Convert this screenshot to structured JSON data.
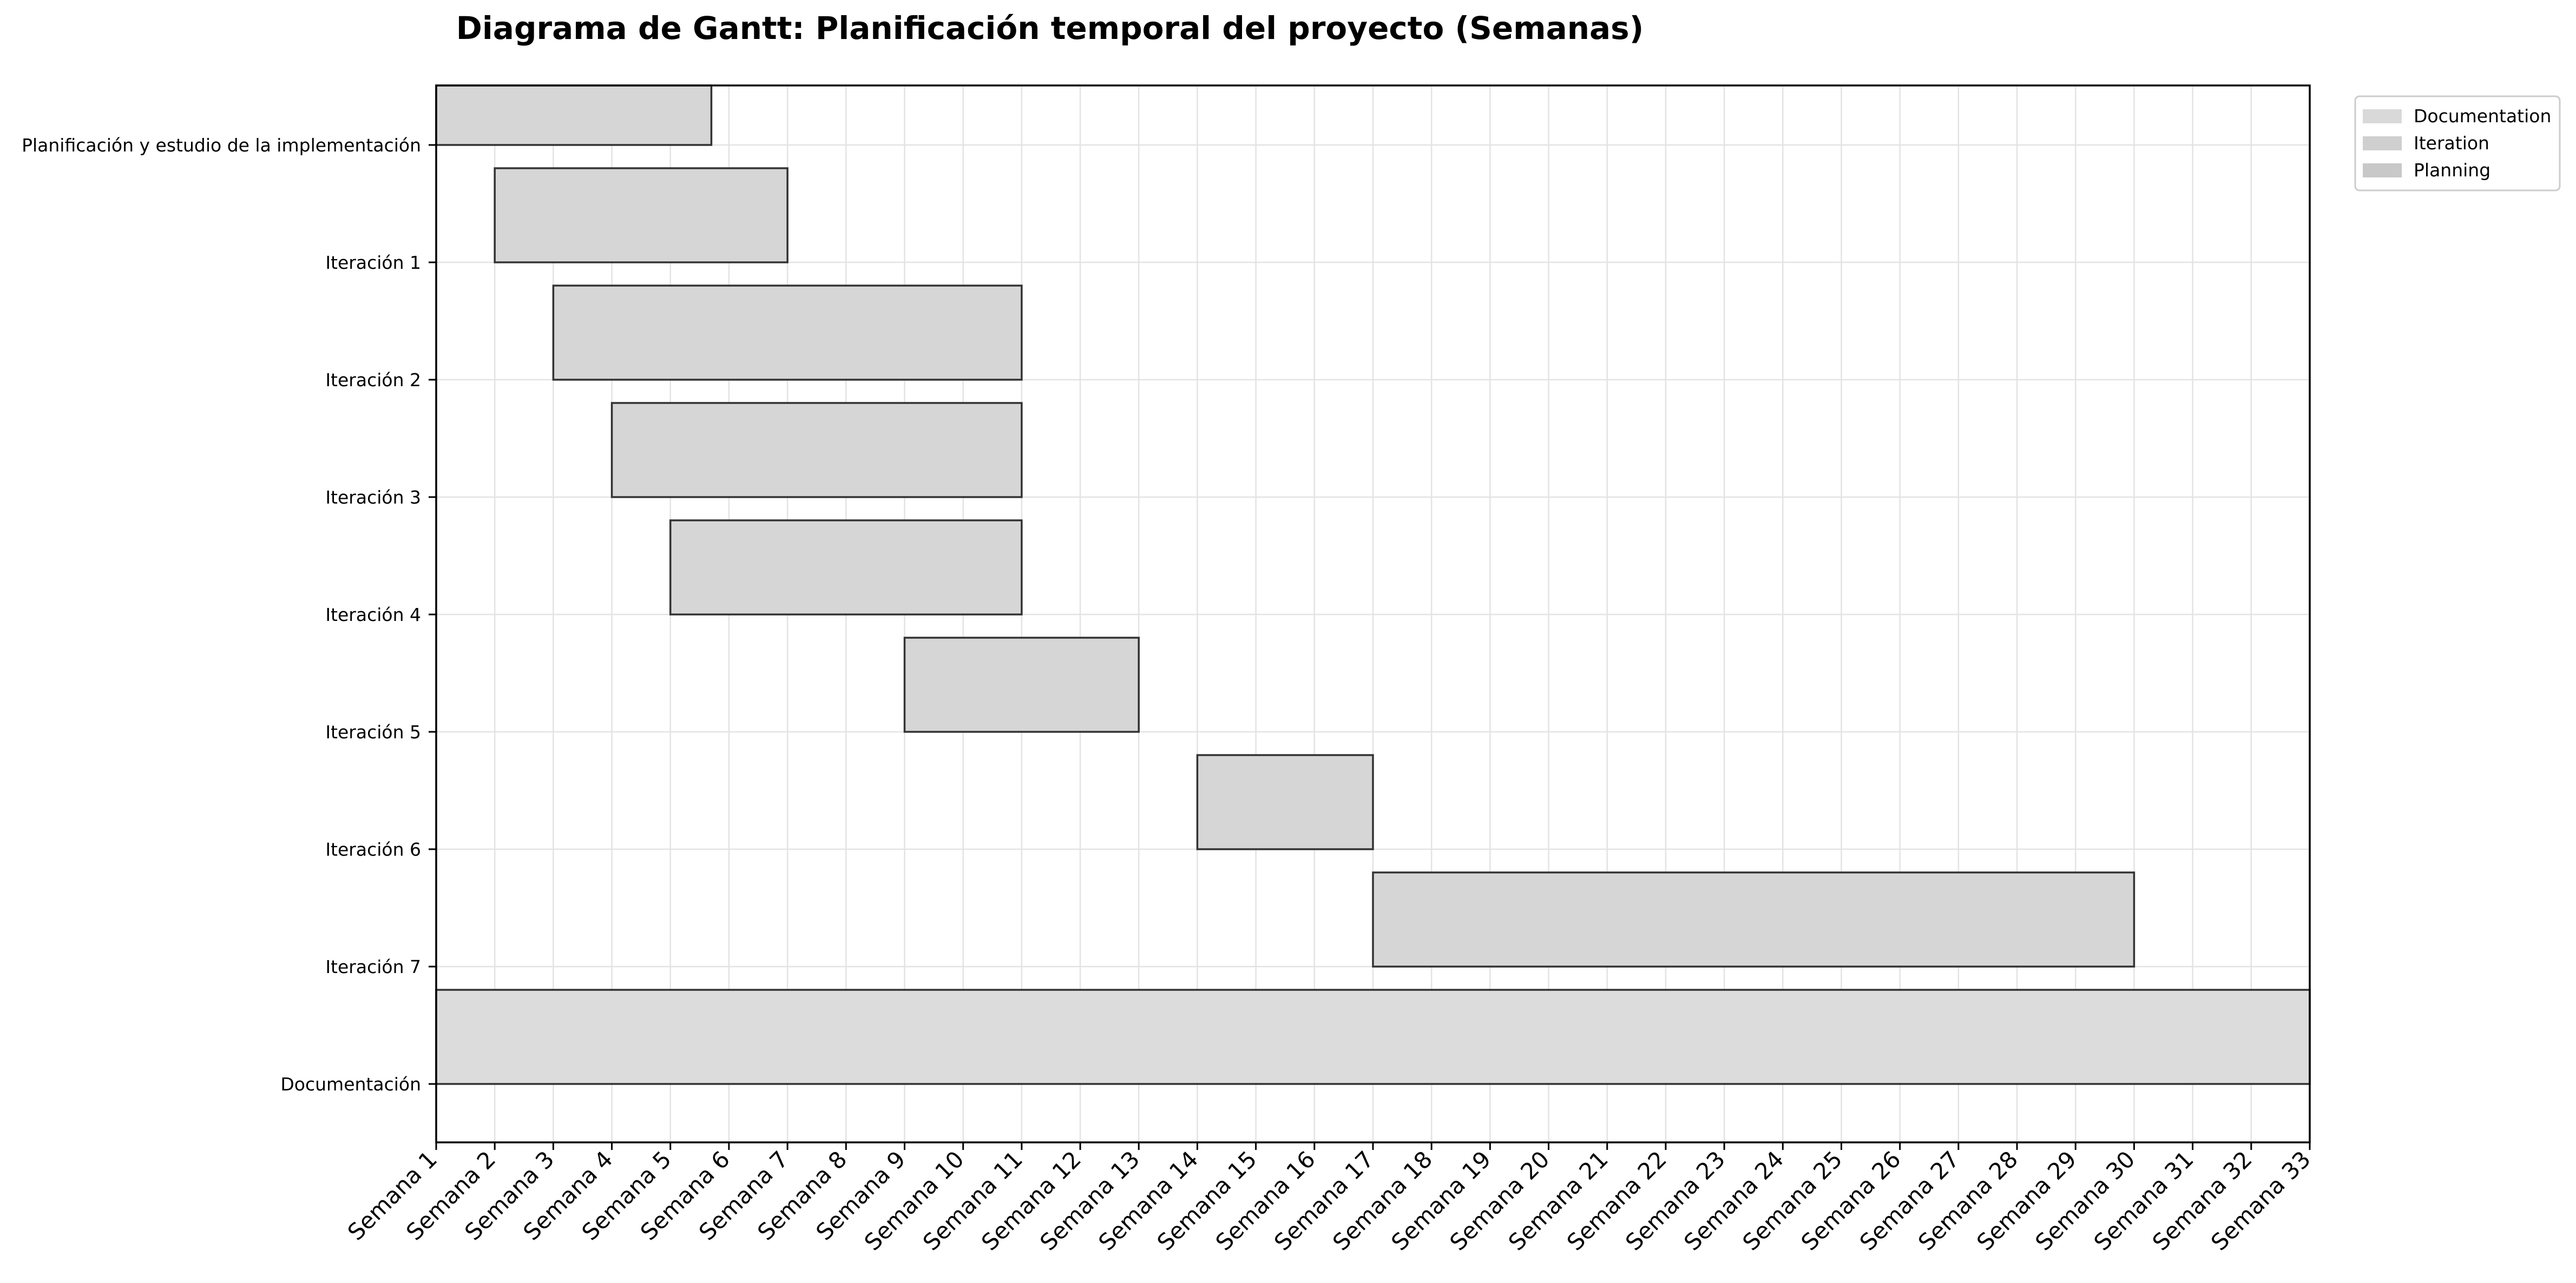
{
  "chart_data": {
    "type": "gantt",
    "title": "Diagrama de Gantt: Planificación temporal del proyecto (Semanas)",
    "xlabel": "",
    "ylabel": "",
    "x_tick_labels": [
      "Semana 1",
      "Semana 2",
      "Semana 3",
      "Semana 4",
      "Semana 5",
      "Semana 6",
      "Semana 7",
      "Semana 8",
      "Semana 9",
      "Semana 10",
      "Semana 11",
      "Semana 12",
      "Semana 13",
      "Semana 14",
      "Semana 15",
      "Semana 16",
      "Semana 17",
      "Semana 18",
      "Semana 19",
      "Semana 20",
      "Semana 21",
      "Semana 22",
      "Semana 23",
      "Semana 24",
      "Semana 25",
      "Semana 26",
      "Semana 27",
      "Semana 28",
      "Semana 29",
      "Semana 30",
      "Semana 31",
      "Semana 32",
      "Semana 33"
    ],
    "xlim": [
      1,
      33
    ],
    "grid": true,
    "legend_position": "top-right",
    "legend": [
      {
        "name": "Documentation",
        "color": "#d9d9d9"
      },
      {
        "name": "Iteration",
        "color": "#cfcfcf"
      },
      {
        "name": "Planning",
        "color": "#c8c8c8"
      }
    ],
    "bar_color": "#d6d6d6",
    "doc_bar_color": "#dcdcdc",
    "tasks": [
      {
        "name": "Planificación y estudio de la implementación",
        "start": 1,
        "end": 5.7,
        "category": "Planning"
      },
      {
        "name": "Iteración 1",
        "start": 2,
        "end": 7,
        "category": "Iteration"
      },
      {
        "name": "Iteración 2",
        "start": 3,
        "end": 11,
        "category": "Iteration"
      },
      {
        "name": "Iteración 3",
        "start": 4,
        "end": 11,
        "category": "Iteration"
      },
      {
        "name": "Iteración 4",
        "start": 5,
        "end": 11,
        "category": "Iteration"
      },
      {
        "name": "Iteración 5",
        "start": 9,
        "end": 13,
        "category": "Iteration"
      },
      {
        "name": "Iteración 6",
        "start": 14,
        "end": 17,
        "category": "Iteration"
      },
      {
        "name": "Iteración 7",
        "start": 17,
        "end": 30,
        "category": "Iteration"
      },
      {
        "name": "Documentación",
        "start": 1,
        "end": 33,
        "category": "Documentation"
      }
    ]
  }
}
